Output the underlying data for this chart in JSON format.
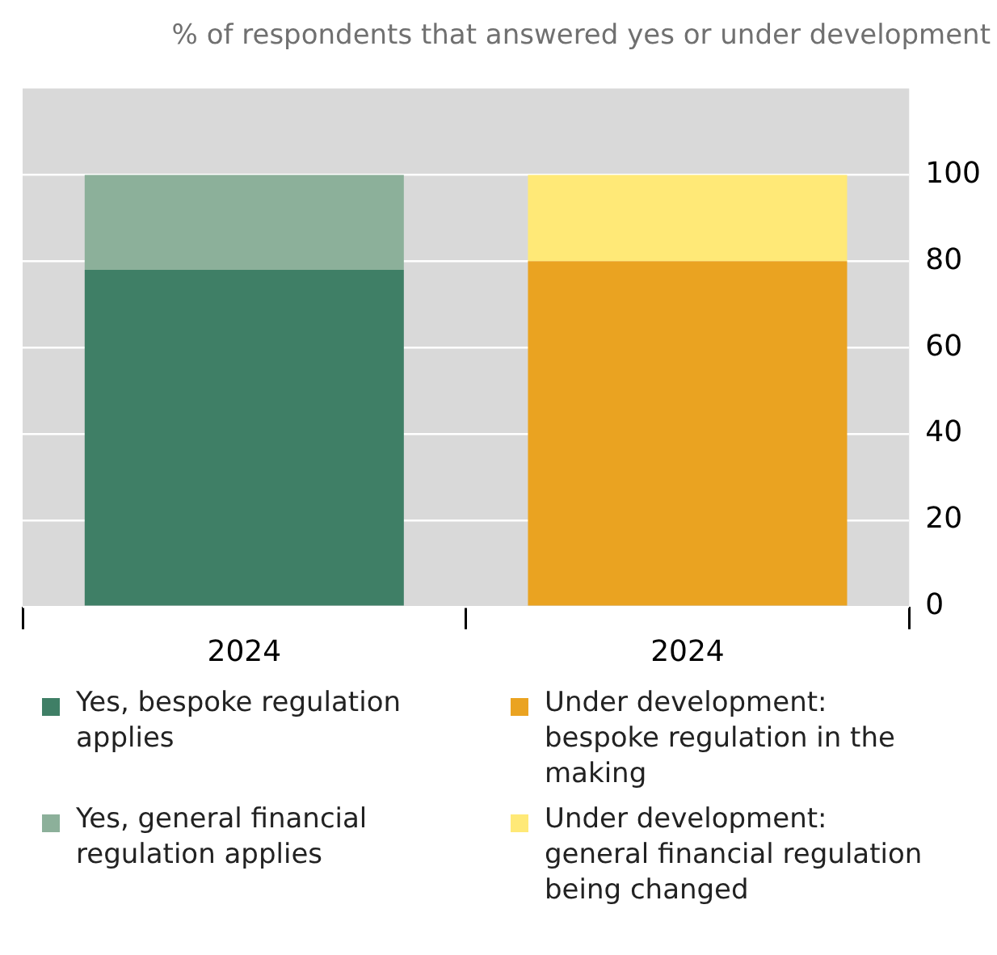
{
  "chart_data": {
    "type": "bar",
    "subtitle": "% of respondents that answered yes or under development",
    "categories": [
      "2024",
      "2024"
    ],
    "stacked": true,
    "ylim": [
      0,
      120
    ],
    "yticks": [
      0,
      20,
      40,
      60,
      80,
      100
    ],
    "grid": "y",
    "legend": "bottom",
    "series": [
      {
        "name": "Yes, bespoke regulation applies",
        "color": "#3f7f66",
        "values": [
          78,
          null
        ]
      },
      {
        "name": "Yes, general financial regulation applies",
        "color": "#8cb09a",
        "values": [
          22,
          null
        ]
      },
      {
        "name": "Under development: bespoke regulation in the making",
        "color": "#eaa321",
        "values": [
          null,
          80
        ]
      },
      {
        "name": "Under development: general financial regulation being changed",
        "color": "#ffe977",
        "values": [
          null,
          20
        ]
      }
    ]
  }
}
